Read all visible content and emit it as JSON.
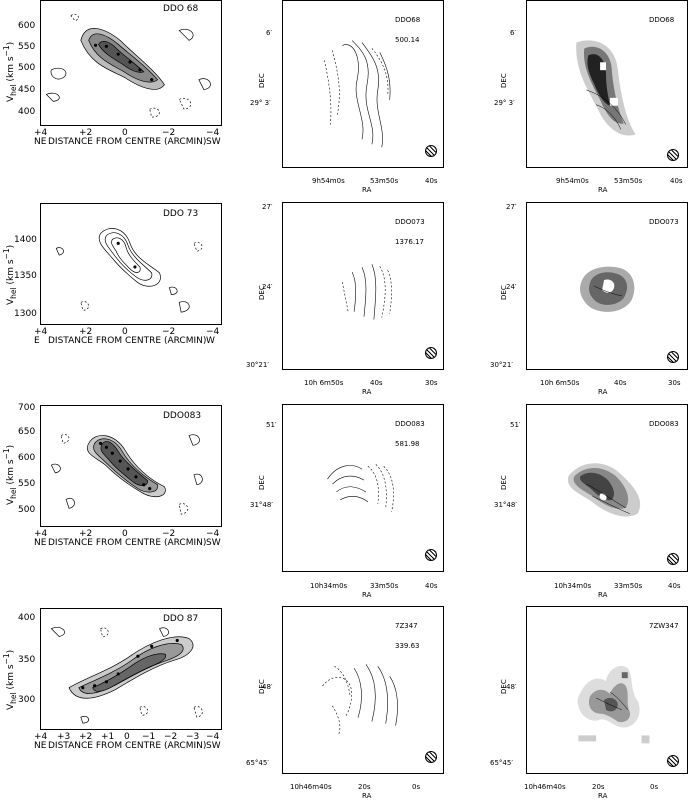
{
  "rows": [
    {
      "pv": {
        "label": "DDO 68",
        "ylabel": "V",
        "ylabel_sub": "hel",
        "ylabel_unit": "(km s",
        "yticks": [
          "600",
          "550",
          "500",
          "450",
          "400"
        ],
        "xticks": [
          "+4",
          "+2",
          "0",
          "−2",
          "−4"
        ],
        "xlabel": "DISTANCE FROM CENTRE (ARCMIN)",
        "left_dir": "NE",
        "right_dir": "SW"
      },
      "vel": {
        "label": "DDO68",
        "value": "500.14",
        "dec_ticks": [
          "6′",
          "29° 3′"
        ],
        "ra_ticks": [
          "9h54m0s",
          "53m50s",
          "40s"
        ],
        "ylabel": "DEC",
        "xlabel": "RA"
      },
      "gray": {
        "label": "DDO68",
        "dec_ticks": [
          "6′",
          "29° 3′"
        ],
        "ra_ticks": [
          "9h54m0s",
          "53m50s",
          "40s"
        ],
        "ylabel": "DEC",
        "xlabel": "RA"
      }
    },
    {
      "pv": {
        "label": "DDO 73",
        "ylabel": "V",
        "ylabel_sub": "hel",
        "ylabel_unit": "(km s",
        "yticks": [
          "1400",
          "1350",
          "1300"
        ],
        "xticks": [
          "+4",
          "+2",
          "0",
          "−2",
          "−4"
        ],
        "xlabel": "DISTANCE FROM CENTRE (ARCMIN)",
        "left_dir": "E",
        "right_dir": "W"
      },
      "vel": {
        "label": "DDO073",
        "value": "1376.17",
        "dec_ticks": [
          "27′",
          "24′",
          "30°21′"
        ],
        "ra_ticks": [
          "10h 6m50s",
          "40s",
          "30s"
        ],
        "ylabel": "DEC",
        "xlabel": "RA"
      },
      "gray": {
        "label": "DDO073",
        "dec_ticks": [
          "27′",
          "24′",
          "30°21′"
        ],
        "ra_ticks": [
          "10h 6m50s",
          "40s",
          "30s"
        ],
        "ylabel": "DEC",
        "xlabel": "RA"
      }
    },
    {
      "pv": {
        "label": "DDO083",
        "ylabel": "V",
        "ylabel_sub": "hel",
        "ylabel_unit": "(km s",
        "yticks": [
          "700",
          "650",
          "600",
          "550",
          "500"
        ],
        "xticks": [
          "+4",
          "+2",
          "0",
          "−2",
          "−4"
        ],
        "xlabel": "DISTANCE FROM CENTRE (ARCMIN)",
        "left_dir": "NE",
        "right_dir": "SW"
      },
      "vel": {
        "label": "DDO083",
        "value": "581.98",
        "dec_ticks": [
          "51′",
          "31°48′"
        ],
        "ra_ticks": [
          "10h34m0s",
          "33m50s",
          "40s"
        ],
        "ylabel": "DEC",
        "xlabel": "RA"
      },
      "gray": {
        "label": "DDO083",
        "dec_ticks": [
          "51′",
          "31°48′"
        ],
        "ra_ticks": [
          "10h34m0s",
          "33m50s",
          "40s"
        ],
        "ylabel": "DEC",
        "xlabel": "RA"
      }
    },
    {
      "pv": {
        "label": "DDO 87",
        "ylabel": "V",
        "ylabel_sub": "hel",
        "ylabel_unit": "(km s",
        "yticks": [
          "400",
          "350",
          "300"
        ],
        "xticks": [
          "+4",
          "+3",
          "+2",
          "+1",
          "0",
          "−1",
          "−2",
          "−3",
          "−4"
        ],
        "xlabel": "DISTANCE FROM CENTRE (ARCMIN)",
        "left_dir": "NE",
        "right_dir": "SW"
      },
      "vel": {
        "label": "7Z347",
        "value": "339.63",
        "dec_ticks": [
          "48′",
          "65°45′"
        ],
        "ra_ticks": [
          "10h46m40s",
          "20s",
          "0s"
        ],
        "ylabel": "DEC",
        "xlabel": "RA"
      },
      "gray": {
        "label": "7ZW347",
        "dec_ticks": [
          "48′",
          "65°45′"
        ],
        "ra_ticks": [
          "10h46m40s",
          "20s",
          "0s"
        ],
        "ylabel": "DEC",
        "xlabel": "RA"
      }
    }
  ]
}
